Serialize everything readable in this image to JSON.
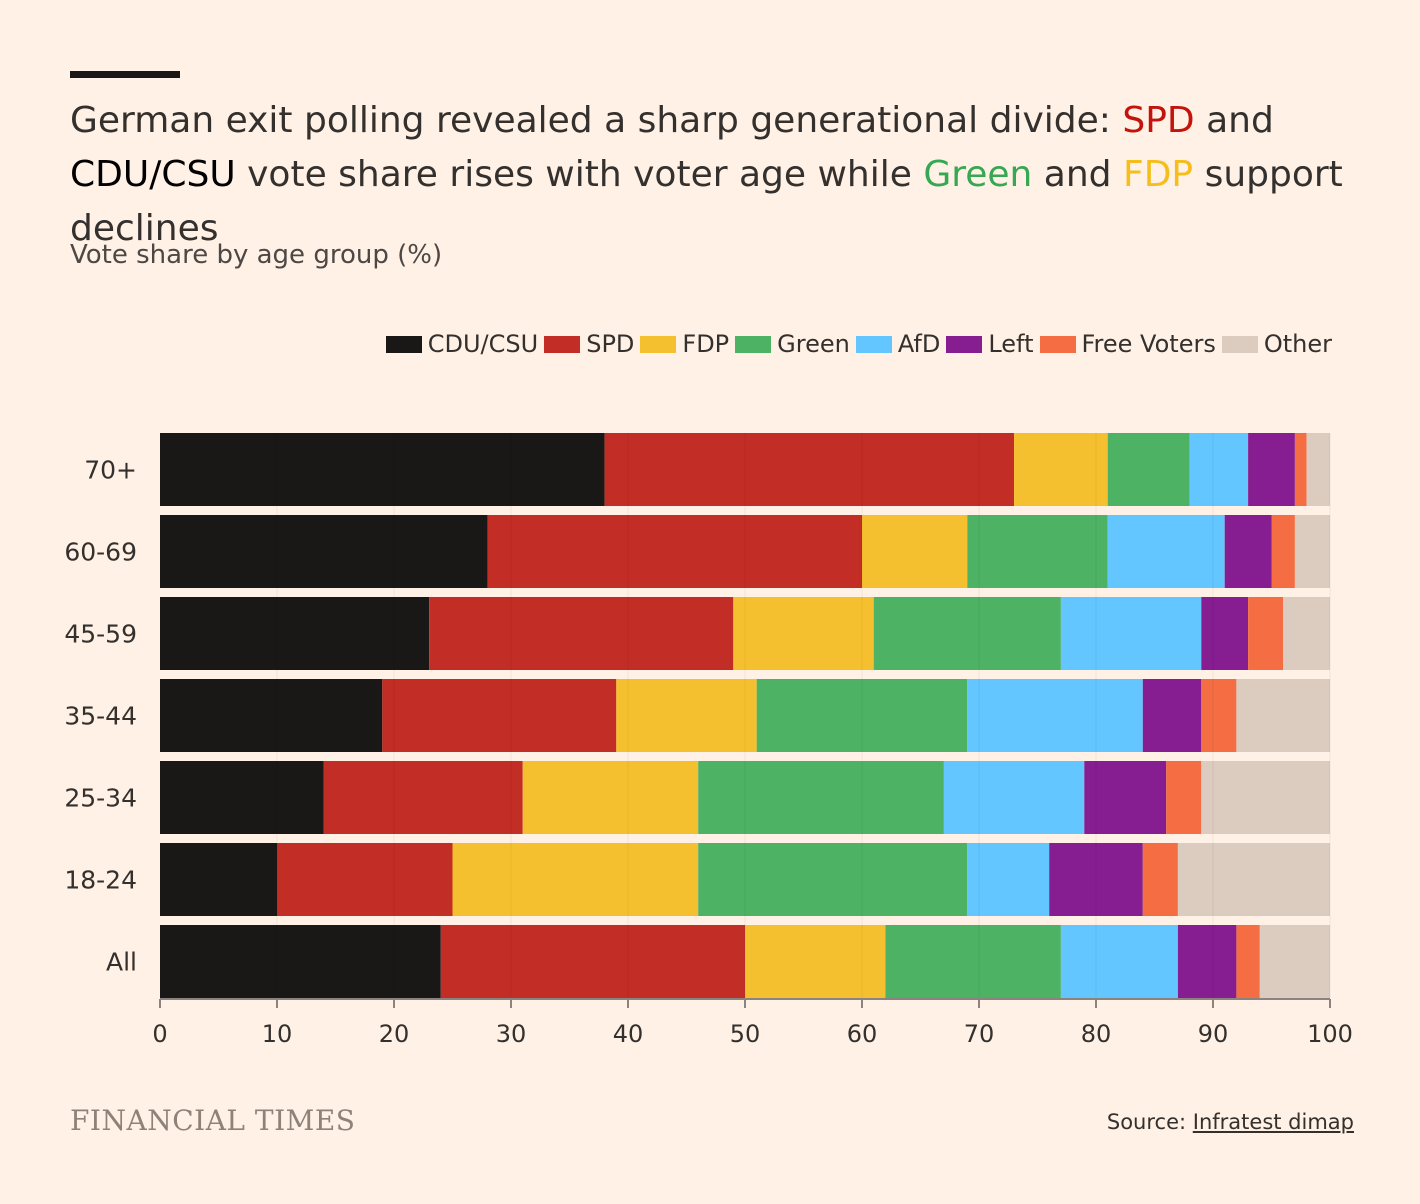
{
  "title": {
    "part1": "German exit polling revealed a sharp generational divide: ",
    "spd": "SPD",
    "part2": " and ",
    "cdu": "CDU/CSU",
    "part3": " vote share rises with voter age while ",
    "green": "Green",
    "part4": " and ",
    "fdp": "FDP",
    "part5": " support declines"
  },
  "subtitle": "Vote share by age group (%)",
  "footer": {
    "logo": "FINANCIAL TIMES",
    "source_prefix": "Source: ",
    "source_link": "Infratest dimap"
  },
  "chart_data": {
    "type": "bar",
    "orientation": "horizontal",
    "stacked": true,
    "xlim": [
      0,
      100
    ],
    "xticks": [
      0,
      10,
      20,
      30,
      40,
      50,
      60,
      70,
      80,
      90,
      100
    ],
    "categories": [
      "70+",
      "60-69",
      "45-59",
      "35-44",
      "25-34",
      "18-24",
      "All"
    ],
    "series": [
      {
        "name": "CDU/CSU",
        "color": "#1a1817",
        "values": [
          38,
          28,
          23,
          19,
          14,
          10,
          24
        ]
      },
      {
        "name": "SPD",
        "color": "#c22d25",
        "values": [
          35,
          32,
          26,
          20,
          17,
          15,
          26
        ]
      },
      {
        "name": "FDP",
        "color": "#f5c02f",
        "values": [
          8,
          9,
          12,
          12,
          15,
          21,
          12
        ]
      },
      {
        "name": "Green",
        "color": "#4eb265",
        "values": [
          7,
          12,
          16,
          18,
          21,
          23,
          15
        ]
      },
      {
        "name": "AfD",
        "color": "#63c6ff",
        "values": [
          5,
          10,
          12,
          15,
          12,
          7,
          10
        ]
      },
      {
        "name": "Left",
        "color": "#861d91",
        "values": [
          4,
          4,
          4,
          5,
          7,
          8,
          5
        ]
      },
      {
        "name": "Free Voters",
        "color": "#f46d43",
        "values": [
          1,
          2,
          3,
          3,
          3,
          3,
          2
        ]
      },
      {
        "name": "Other",
        "color": "#dcccc0",
        "values": [
          2,
          3,
          4,
          8,
          11,
          13,
          6
        ]
      }
    ],
    "legend_position": "top-right"
  }
}
